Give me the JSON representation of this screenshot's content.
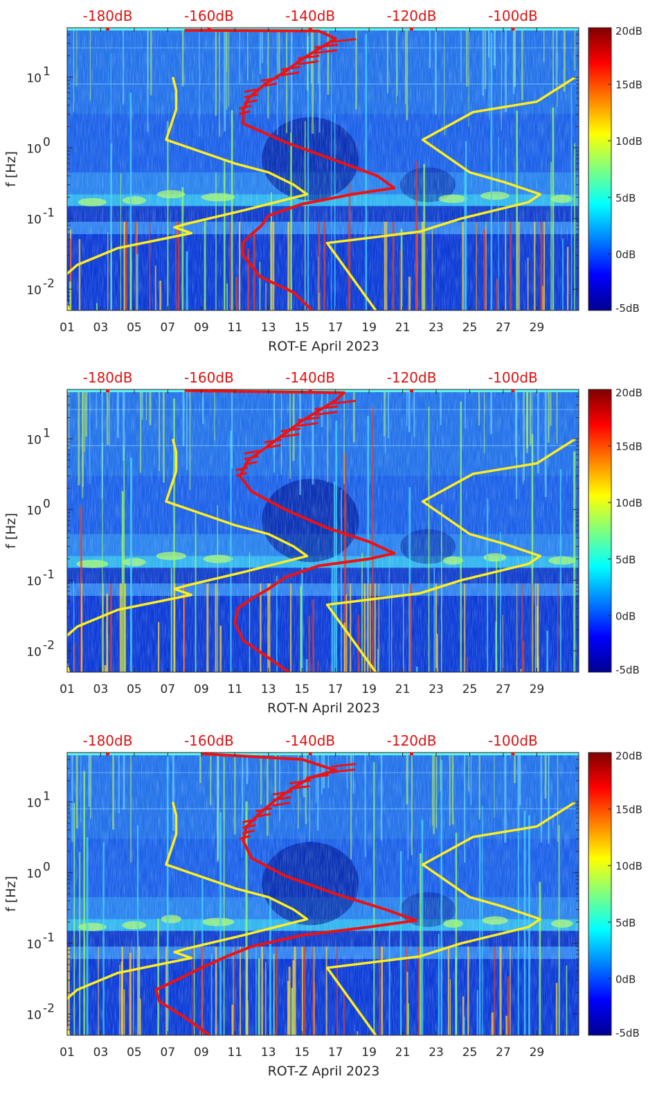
{
  "figure_title": "",
  "chart_data": [
    {
      "type": "heatmap",
      "station": "ROT-E",
      "xlabel": "ROT-E April 2023",
      "ylabel": "f [Hz]",
      "x_ticks": [
        "01",
        "03",
        "05",
        "07",
        "09",
        "11",
        "13",
        "15",
        "17",
        "19",
        "21",
        "23",
        "25",
        "27",
        "29"
      ],
      "x_range_days": [
        1,
        31.5
      ],
      "y_ticks": [
        {
          "v": 0.01,
          "base": "10",
          "exp": "-2"
        },
        {
          "v": 0.1,
          "base": "10",
          "exp": "-1"
        },
        {
          "v": 1,
          "base": "10",
          "exp": "0"
        },
        {
          "v": 10,
          "base": "10",
          "exp": "1"
        }
      ],
      "y_range_hz": [
        0.005,
        50
      ],
      "top_axis_labels": [
        "-180dB",
        "-160dB",
        "-140dB",
        "-120dB",
        "-100dB"
      ],
      "top_axis_range_db": [
        -188,
        -87
      ],
      "colorbar_labels": [
        "20dB",
        "15dB",
        "10dB",
        "5dB",
        "0dB",
        "-5dB"
      ],
      "colorbar_range_db": [
        -5,
        20
      ],
      "colors": {
        "model_curve": "#ffee22",
        "psd_curve": "#ee1111"
      },
      "series": [
        {
          "name": "low-noise-model-left",
          "color": "#ffee22",
          "points": [
            [
              1.1,
              0.005
            ],
            [
              0.8,
              0.009
            ],
            [
              0.8,
              0.015
            ],
            [
              1.6,
              0.022
            ],
            [
              4,
              0.038
            ],
            [
              8.4,
              0.062
            ],
            [
              7.4,
              0.075
            ],
            [
              8.2,
              0.085
            ],
            [
              11.5,
              0.13
            ],
            [
              15.3,
              0.22
            ],
            [
              14.5,
              0.3
            ],
            [
              13,
              0.45
            ],
            [
              11,
              0.6
            ],
            [
              6.9,
              1.3
            ],
            [
              7.5,
              3.5
            ],
            [
              7.5,
              6.5
            ],
            [
              7.3,
              10
            ]
          ]
        },
        {
          "name": "high-noise-model-right",
          "color": "#ffee22",
          "points": [
            [
              19.4,
              0.005
            ],
            [
              16.5,
              0.045
            ],
            [
              22,
              0.065
            ],
            [
              24.5,
              0.1
            ],
            [
              28.5,
              0.17
            ],
            [
              29.2,
              0.22
            ],
            [
              27,
              0.33
            ],
            [
              25,
              0.45
            ],
            [
              22.2,
              1.3
            ],
            [
              25.2,
              3.2
            ],
            [
              29,
              4.5
            ],
            [
              31.3,
              10
            ]
          ]
        },
        {
          "name": "psd-curve",
          "color": "#ee1111",
          "points": [
            [
              15.6,
              0.005
            ],
            [
              14.5,
              0.009
            ],
            [
              12.5,
              0.015
            ],
            [
              11.5,
              0.03
            ],
            [
              11.5,
              0.046
            ],
            [
              12,
              0.06
            ],
            [
              12.6,
              0.08
            ],
            [
              13,
              0.11
            ],
            [
              15,
              0.16
            ],
            [
              18,
              0.22
            ],
            [
              20.5,
              0.27
            ],
            [
              19.5,
              0.4
            ],
            [
              17.5,
              0.6
            ],
            [
              14,
              1.2
            ],
            [
              11.5,
              2.2
            ],
            [
              11.5,
              3.5
            ],
            [
              11.8,
              5
            ],
            [
              12.8,
              8
            ],
            [
              14,
              12
            ],
            [
              15,
              18
            ],
            [
              16,
              25
            ],
            [
              17,
              35
            ],
            [
              16,
              45
            ],
            [
              8,
              46
            ]
          ]
        }
      ]
    },
    {
      "type": "heatmap",
      "station": "ROT-N",
      "xlabel": "ROT-N April 2023",
      "ylabel": "f [Hz]",
      "x_ticks": [
        "01",
        "03",
        "05",
        "07",
        "09",
        "11",
        "13",
        "15",
        "17",
        "19",
        "21",
        "23",
        "25",
        "27",
        "29"
      ],
      "x_range_days": [
        1,
        31.5
      ],
      "y_ticks": [
        {
          "v": 0.01,
          "base": "10",
          "exp": "-2"
        },
        {
          "v": 0.1,
          "base": "10",
          "exp": "-1"
        },
        {
          "v": 1,
          "base": "10",
          "exp": "0"
        },
        {
          "v": 10,
          "base": "10",
          "exp": "1"
        }
      ],
      "y_range_hz": [
        0.005,
        50
      ],
      "top_axis_labels": [
        "-180dB",
        "-160dB",
        "-140dB",
        "-120dB",
        "-100dB"
      ],
      "top_axis_range_db": [
        -188,
        -87
      ],
      "colorbar_labels": [
        "20dB",
        "15dB",
        "10dB",
        "5dB",
        "0dB",
        "-5dB"
      ],
      "colorbar_range_db": [
        -5,
        20
      ],
      "colors": {
        "model_curve": "#ffee22",
        "psd_curve": "#ee1111"
      },
      "series": [
        {
          "name": "low-noise-model-left",
          "color": "#ffee22",
          "points": [
            [
              1.1,
              0.005
            ],
            [
              0.8,
              0.009
            ],
            [
              0.8,
              0.015
            ],
            [
              1.6,
              0.022
            ],
            [
              4,
              0.038
            ],
            [
              8.4,
              0.062
            ],
            [
              7.4,
              0.075
            ],
            [
              8.2,
              0.085
            ],
            [
              11.5,
              0.13
            ],
            [
              15.3,
              0.22
            ],
            [
              14.5,
              0.3
            ],
            [
              13,
              0.45
            ],
            [
              11,
              0.6
            ],
            [
              6.9,
              1.3
            ],
            [
              7.5,
              3.5
            ],
            [
              7.5,
              6.5
            ],
            [
              7.3,
              10
            ]
          ]
        },
        {
          "name": "high-noise-model-right",
          "color": "#ffee22",
          "points": [
            [
              19.4,
              0.005
            ],
            [
              16.5,
              0.045
            ],
            [
              22,
              0.065
            ],
            [
              24.5,
              0.1
            ],
            [
              28.5,
              0.17
            ],
            [
              29.2,
              0.22
            ],
            [
              27,
              0.33
            ],
            [
              25,
              0.45
            ],
            [
              22.2,
              1.3
            ],
            [
              25.2,
              3.2
            ],
            [
              29,
              4.5
            ],
            [
              31.3,
              10
            ]
          ]
        },
        {
          "name": "psd-curve",
          "color": "#ee1111",
          "points": [
            [
              14.2,
              0.005
            ],
            [
              13,
              0.008
            ],
            [
              11.5,
              0.014
            ],
            [
              11,
              0.025
            ],
            [
              11.2,
              0.04
            ],
            [
              12,
              0.055
            ],
            [
              13,
              0.075
            ],
            [
              14,
              0.11
            ],
            [
              16,
              0.16
            ],
            [
              19,
              0.2
            ],
            [
              20.5,
              0.24
            ],
            [
              19,
              0.35
            ],
            [
              16.5,
              0.55
            ],
            [
              14,
              1.0
            ],
            [
              12,
              1.8
            ],
            [
              11.3,
              3.0
            ],
            [
              11.8,
              5
            ],
            [
              13,
              8
            ],
            [
              14,
              12
            ],
            [
              15,
              18
            ],
            [
              16,
              25
            ],
            [
              17,
              35
            ],
            [
              17.5,
              45
            ],
            [
              8,
              48
            ]
          ]
        }
      ]
    },
    {
      "type": "heatmap",
      "station": "ROT-Z",
      "xlabel": "ROT-Z April 2023",
      "ylabel": "f [Hz]",
      "x_ticks": [
        "01",
        "03",
        "05",
        "07",
        "09",
        "11",
        "13",
        "15",
        "17",
        "19",
        "21",
        "23",
        "25",
        "27",
        "29"
      ],
      "x_range_days": [
        1,
        31.5
      ],
      "y_ticks": [
        {
          "v": 0.01,
          "base": "10",
          "exp": "-2"
        },
        {
          "v": 0.1,
          "base": "10",
          "exp": "-1"
        },
        {
          "v": 1,
          "base": "10",
          "exp": "0"
        },
        {
          "v": 10,
          "base": "10",
          "exp": "1"
        }
      ],
      "y_range_hz": [
        0.005,
        50
      ],
      "top_axis_labels": [
        "-180dB",
        "-160dB",
        "-140dB",
        "-120dB",
        "-100dB"
      ],
      "top_axis_range_db": [
        -188,
        -87
      ],
      "colorbar_labels": [
        "20dB",
        "15dB",
        "10dB",
        "5dB",
        "0dB",
        "-5dB"
      ],
      "colorbar_range_db": [
        -5,
        20
      ],
      "colors": {
        "model_curve": "#ffee22",
        "psd_curve": "#ee1111"
      },
      "series": [
        {
          "name": "low-noise-model-left",
          "color": "#ffee22",
          "points": [
            [
              1.1,
              0.005
            ],
            [
              0.8,
              0.009
            ],
            [
              0.8,
              0.015
            ],
            [
              1.6,
              0.022
            ],
            [
              4,
              0.038
            ],
            [
              8.4,
              0.062
            ],
            [
              7.4,
              0.075
            ],
            [
              8.2,
              0.085
            ],
            [
              11.5,
              0.13
            ],
            [
              15.3,
              0.22
            ],
            [
              14.5,
              0.3
            ],
            [
              13,
              0.45
            ],
            [
              11,
              0.6
            ],
            [
              6.9,
              1.3
            ],
            [
              7.5,
              3.5
            ],
            [
              7.5,
              6.5
            ],
            [
              7.3,
              10
            ]
          ]
        },
        {
          "name": "high-noise-model-right",
          "color": "#ffee22",
          "points": [
            [
              19.4,
              0.005
            ],
            [
              16.5,
              0.045
            ],
            [
              22,
              0.065
            ],
            [
              24.5,
              0.1
            ],
            [
              28.5,
              0.17
            ],
            [
              29.2,
              0.22
            ],
            [
              27,
              0.33
            ],
            [
              25,
              0.45
            ],
            [
              22.2,
              1.3
            ],
            [
              25.2,
              3.2
            ],
            [
              29,
              4.5
            ],
            [
              31.3,
              10
            ]
          ]
        },
        {
          "name": "psd-curve",
          "color": "#ee1111",
          "points": [
            [
              9.5,
              0.005
            ],
            [
              8,
              0.009
            ],
            [
              6.5,
              0.015
            ],
            [
              6.3,
              0.022
            ],
            [
              7.5,
              0.03
            ],
            [
              9,
              0.045
            ],
            [
              10.5,
              0.065
            ],
            [
              12,
              0.09
            ],
            [
              15,
              0.13
            ],
            [
              19,
              0.17
            ],
            [
              21.8,
              0.21
            ],
            [
              20,
              0.3
            ],
            [
              17,
              0.5
            ],
            [
              14,
              0.9
            ],
            [
              12,
              1.6
            ],
            [
              11.5,
              2.8
            ],
            [
              11.7,
              4.5
            ],
            [
              12.5,
              7
            ],
            [
              13.5,
              11
            ],
            [
              14.5,
              16
            ],
            [
              15.5,
              22
            ],
            [
              17,
              28
            ],
            [
              15,
              40
            ],
            [
              9,
              48
            ]
          ]
        }
      ]
    }
  ]
}
